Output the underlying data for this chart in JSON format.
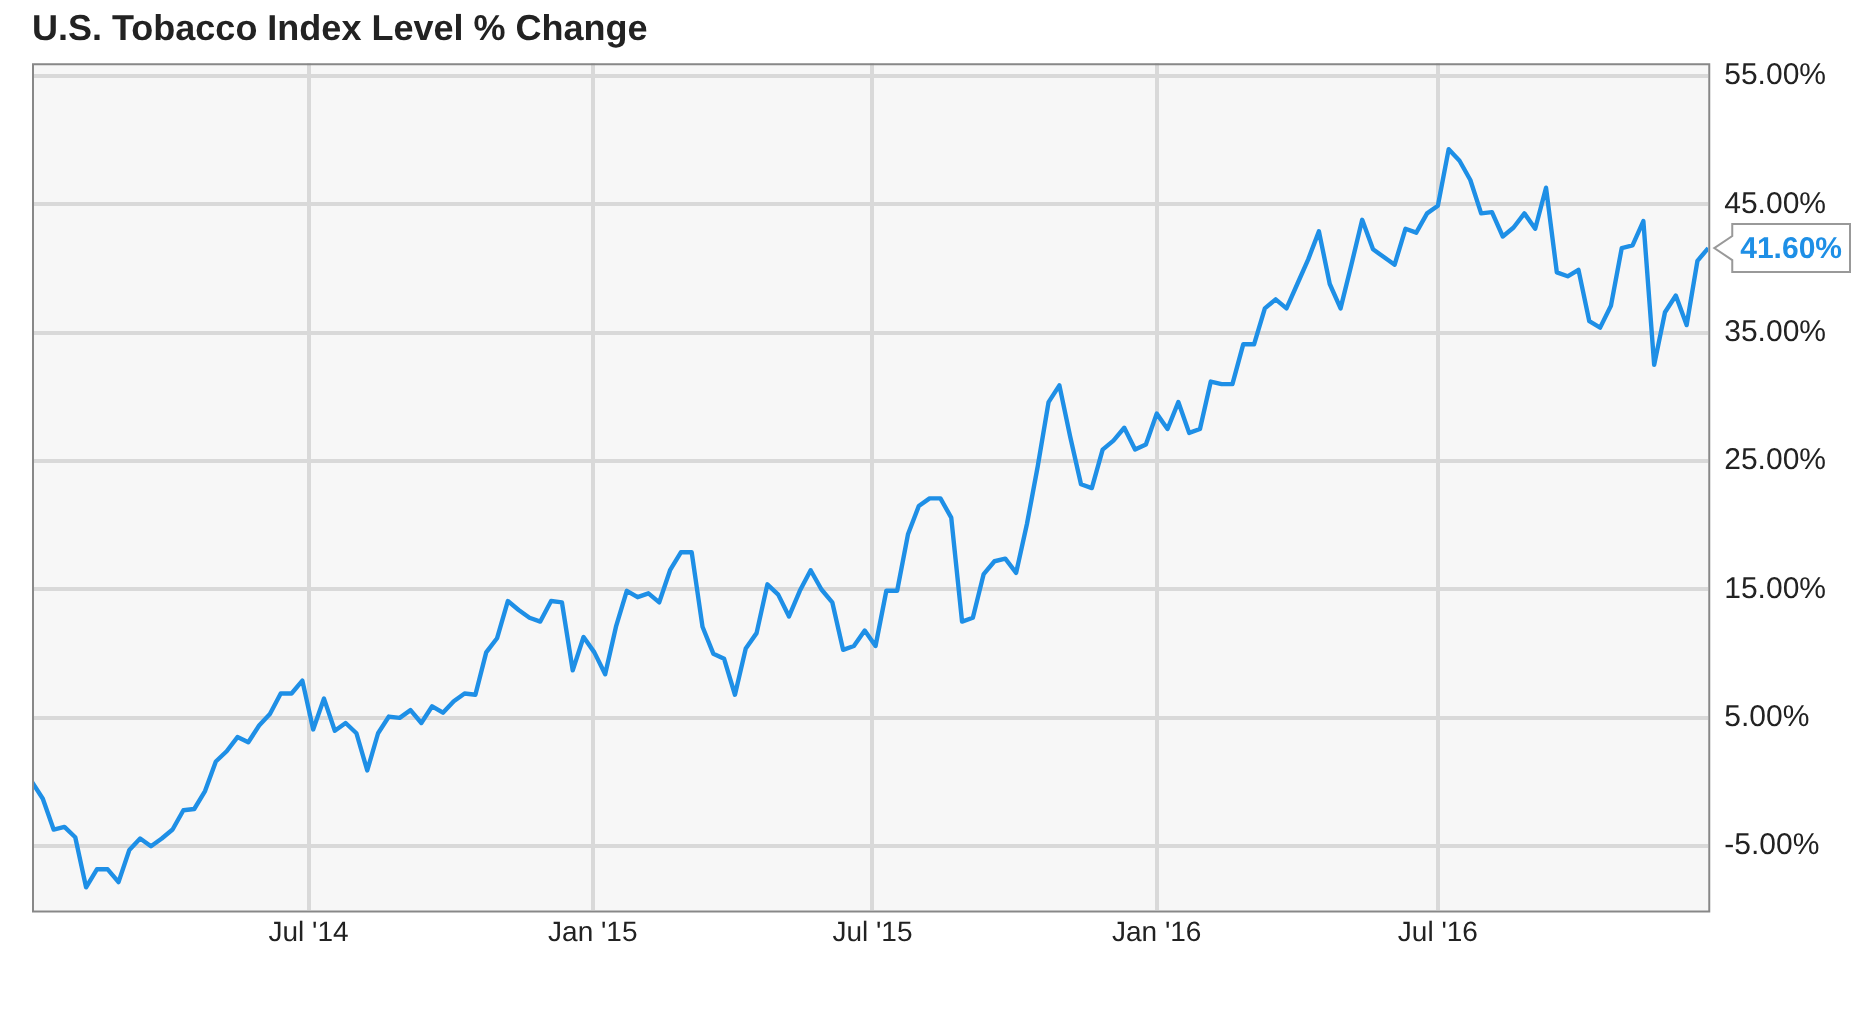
{
  "chart_data": {
    "type": "line",
    "title": "U.S. Tobacco Index Level % Change",
    "x": [
      "2014-01-03",
      "2014-01-10",
      "2014-01-17",
      "2014-01-24",
      "2014-01-31",
      "2014-02-07",
      "2014-02-14",
      "2014-02-21",
      "2014-02-28",
      "2014-03-07",
      "2014-03-14",
      "2014-03-21",
      "2014-03-28",
      "2014-04-04",
      "2014-04-11",
      "2014-04-18",
      "2014-04-25",
      "2014-05-02",
      "2014-05-09",
      "2014-05-16",
      "2014-05-23",
      "2014-05-30",
      "2014-06-06",
      "2014-06-13",
      "2014-06-20",
      "2014-06-27",
      "2014-07-04",
      "2014-07-11",
      "2014-07-18",
      "2014-07-25",
      "2014-08-01",
      "2014-08-08",
      "2014-08-15",
      "2014-08-22",
      "2014-08-29",
      "2014-09-05",
      "2014-09-12",
      "2014-09-19",
      "2014-09-26",
      "2014-10-03",
      "2014-10-10",
      "2014-10-17",
      "2014-10-24",
      "2014-10-31",
      "2014-11-07",
      "2014-11-14",
      "2014-11-21",
      "2014-11-28",
      "2014-12-05",
      "2014-12-12",
      "2014-12-19",
      "2014-12-26",
      "2015-01-02",
      "2015-01-09",
      "2015-01-16",
      "2015-01-23",
      "2015-01-30",
      "2015-02-06",
      "2015-02-13",
      "2015-02-20",
      "2015-02-27",
      "2015-03-06",
      "2015-03-13",
      "2015-03-20",
      "2015-03-27",
      "2015-04-03",
      "2015-04-10",
      "2015-04-17",
      "2015-04-24",
      "2015-05-01",
      "2015-05-08",
      "2015-05-15",
      "2015-05-22",
      "2015-05-29",
      "2015-06-05",
      "2015-06-12",
      "2015-06-19",
      "2015-06-26",
      "2015-07-03",
      "2015-07-10",
      "2015-07-17",
      "2015-07-24",
      "2015-07-31",
      "2015-08-07",
      "2015-08-14",
      "2015-08-21",
      "2015-08-28",
      "2015-09-04",
      "2015-09-11",
      "2015-09-18",
      "2015-09-25",
      "2015-10-02",
      "2015-10-09",
      "2015-10-16",
      "2015-10-23",
      "2015-10-30",
      "2015-11-06",
      "2015-11-13",
      "2015-11-20",
      "2015-11-27",
      "2015-12-04",
      "2015-12-11",
      "2015-12-18",
      "2015-12-25",
      "2016-01-01",
      "2016-01-08",
      "2016-01-15",
      "2016-01-22",
      "2016-01-29",
      "2016-02-05",
      "2016-02-12",
      "2016-02-19",
      "2016-02-26",
      "2016-03-04",
      "2016-03-11",
      "2016-03-18",
      "2016-03-25",
      "2016-04-01",
      "2016-04-08",
      "2016-04-15",
      "2016-04-22",
      "2016-04-29",
      "2016-05-06",
      "2016-05-13",
      "2016-05-20",
      "2016-05-27",
      "2016-06-03",
      "2016-06-10",
      "2016-06-17",
      "2016-06-24",
      "2016-07-01",
      "2016-07-08",
      "2016-07-15",
      "2016-07-22",
      "2016-07-29",
      "2016-08-05",
      "2016-08-12",
      "2016-08-19",
      "2016-08-26",
      "2016-09-02",
      "2016-09-09",
      "2016-09-16",
      "2016-09-23",
      "2016-09-30",
      "2016-10-07",
      "2016-10-14",
      "2016-10-21",
      "2016-10-28",
      "2016-11-04",
      "2016-11-11",
      "2016-11-18",
      "2016-11-25",
      "2016-12-02",
      "2016-12-09",
      "2016-12-16",
      "2016-12-23"
    ],
    "series": [
      {
        "color": "#1e8fe6",
        "values": [
          0,
          -1.3,
          -3.7,
          -3.5,
          -4.3,
          -8.2,
          -6.8,
          -6.8,
          -7.8,
          -5.3,
          -4.4,
          -5.0,
          -4.4,
          -3.7,
          -2.2,
          -2.1,
          -0.7,
          1.6,
          2.4,
          3.5,
          3.1,
          4.4,
          5.3,
          6.9,
          6.9,
          7.9,
          4.1,
          6.5,
          4.0,
          4.6,
          3.8,
          0.9,
          3.8,
          5.1,
          5.0,
          5.6,
          4.6,
          5.9,
          5.4,
          6.3,
          6.9,
          6.8,
          10.1,
          11.2,
          14.1,
          13.4,
          12.8,
          12.5,
          14.1,
          14.0,
          8.7,
          11.3,
          10.1,
          8.4,
          12.1,
          14.9,
          14.4,
          14.7,
          14.0,
          16.5,
          17.9,
          17.9,
          12.1,
          10.0,
          9.6,
          6.8,
          10.4,
          11.6,
          15.4,
          14.6,
          12.9,
          14.9,
          16.5,
          15.0,
          14.0,
          10.3,
          10.6,
          11.8,
          10.6,
          14.9,
          14.9,
          19.3,
          21.5,
          22.1,
          22.1,
          20.6,
          12.5,
          12.8,
          16.2,
          17.2,
          17.4,
          16.3,
          20.1,
          24.6,
          29.6,
          30.9,
          26.9,
          23.2,
          22.9,
          25.9,
          26.6,
          27.6,
          25.9,
          26.3,
          28.7,
          27.5,
          29.6,
          27.2,
          27.5,
          31.2,
          31.0,
          31.0,
          34.1,
          34.1,
          36.9,
          37.6,
          36.9,
          38.8,
          40.7,
          42.9,
          38.8,
          36.9,
          40.3,
          43.8,
          41.5,
          40.9,
          40.3,
          43.1,
          42.8,
          44.3,
          44.9,
          49.3,
          48.4,
          46.9,
          44.3,
          44.4,
          42.5,
          43.2,
          44.3,
          43.1,
          46.3,
          39.7,
          39.4,
          39.9,
          35.9,
          35.4,
          37.1,
          41.6,
          41.8,
          43.7,
          32.5,
          36.6,
          37.9,
          35.6,
          40.6,
          41.6
        ],
        "value_labels": [
          null,
          null,
          null,
          null,
          null,
          null,
          null,
          null,
          null,
          null,
          null,
          null,
          null,
          null,
          null,
          null,
          null,
          null,
          null,
          null,
          null,
          null,
          null,
          null,
          null,
          null,
          null,
          null,
          null,
          null,
          null,
          null,
          null,
          null,
          null,
          null,
          null,
          null,
          null,
          null,
          null,
          null,
          null,
          null,
          null,
          null,
          null,
          null,
          null,
          null,
          null,
          null,
          null,
          null,
          null,
          null,
          null,
          null,
          null,
          null,
          null,
          null,
          null,
          null,
          null,
          null,
          null,
          null,
          null,
          null,
          null,
          null,
          null,
          null,
          null,
          null,
          null,
          null,
          null,
          null,
          null,
          null,
          null,
          null,
          null,
          null,
          null,
          null,
          null,
          null,
          null,
          null,
          null,
          null,
          null,
          null,
          null,
          null,
          null,
          null,
          null,
          null,
          null,
          null,
          null,
          null,
          null,
          null,
          null,
          null,
          null,
          null,
          null,
          null,
          null,
          null,
          null,
          null,
          null,
          null,
          null,
          null,
          null,
          null,
          null,
          null,
          null,
          null,
          null,
          null,
          null,
          null,
          null,
          null,
          null,
          null,
          null,
          null,
          null,
          null,
          null,
          null,
          null,
          null,
          null,
          null,
          null,
          null,
          null,
          null,
          null,
          null,
          null,
          null,
          null,
          "41.60%"
        ]
      }
    ],
    "xlim": [
      "2014-01-03",
      "2016-12-23"
    ],
    "xticks": [
      {
        "value": "2014-07-01",
        "label": "Jul '14"
      },
      {
        "value": "2015-01-01",
        "label": "Jan '15"
      },
      {
        "value": "2015-07-01",
        "label": "Jul '15"
      },
      {
        "value": "2016-01-01",
        "label": "Jan '16"
      },
      {
        "value": "2016-07-01",
        "label": "Jul '16"
      }
    ],
    "ylim": [
      -10,
      56
    ],
    "yticks": [
      {
        "value": -5,
        "label": "-5.00%"
      },
      {
        "value": 5,
        "label": "5.00%"
      },
      {
        "value": 15,
        "label": "15.00%"
      },
      {
        "value": 25,
        "label": "25.00%"
      },
      {
        "value": 35,
        "label": "35.00%"
      },
      {
        "value": 45,
        "label": "45.00%"
      },
      {
        "value": 55,
        "label": "55.00%"
      }
    ],
    "grid": true,
    "legend": false,
    "marker": "none",
    "line_style": "solid"
  }
}
